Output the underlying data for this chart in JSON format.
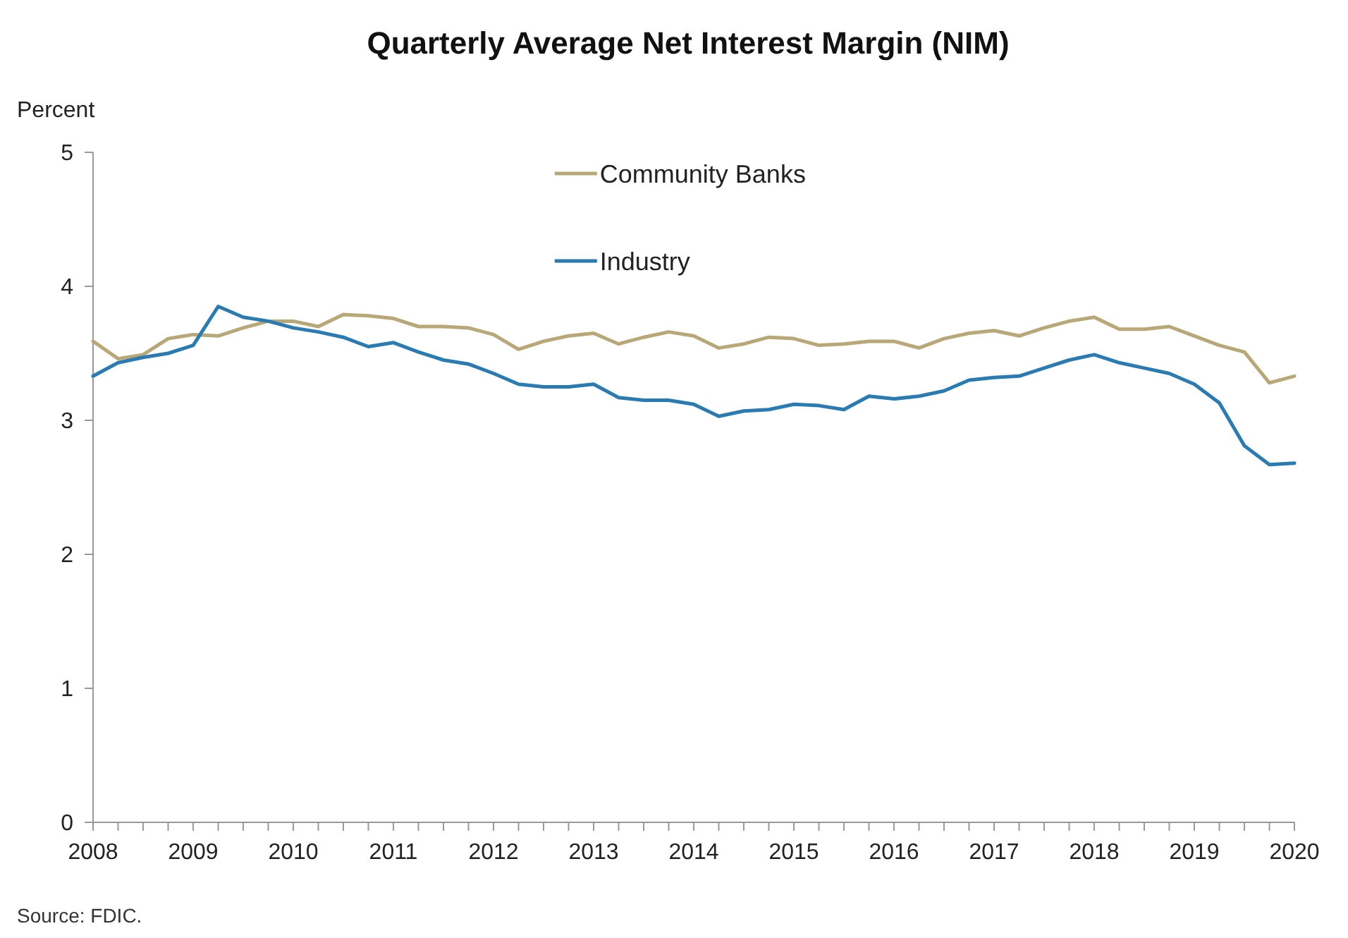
{
  "chart_data": {
    "type": "line",
    "title": "Quarterly Average Net Interest Margin (NIM)",
    "ylabel": "Percent",
    "annotations": [
      "Source: FDIC."
    ],
    "x": [
      2008,
      2008.25,
      2008.5,
      2008.75,
      2009,
      2009.25,
      2009.5,
      2009.75,
      2010,
      2010.25,
      2010.5,
      2010.75,
      2011,
      2011.25,
      2011.5,
      2011.75,
      2012,
      2012.25,
      2012.5,
      2012.75,
      2013,
      2013.25,
      2013.5,
      2013.75,
      2014,
      2014.25,
      2014.5,
      2014.75,
      2015,
      2015.25,
      2015.5,
      2015.75,
      2016,
      2016.25,
      2016.5,
      2016.75,
      2017,
      2017.25,
      2017.5,
      2017.75,
      2018,
      2018.25,
      2018.5,
      2018.75,
      2019,
      2019.25,
      2019.5,
      2019.75,
      2020
    ],
    "series": [
      {
        "name": "Community Banks",
        "color": "#b8a878",
        "values": [
          3.59,
          3.46,
          3.49,
          3.61,
          3.64,
          3.63,
          3.69,
          3.74,
          3.74,
          3.7,
          3.79,
          3.78,
          3.76,
          3.7,
          3.7,
          3.69,
          3.64,
          3.53,
          3.59,
          3.63,
          3.65,
          3.57,
          3.62,
          3.66,
          3.63,
          3.54,
          3.57,
          3.62,
          3.61,
          3.56,
          3.57,
          3.59,
          3.59,
          3.54,
          3.61,
          3.65,
          3.67,
          3.63,
          3.69,
          3.74,
          3.77,
          3.68,
          3.68,
          3.7,
          3.63,
          3.56,
          3.51,
          3.28,
          3.33
        ]
      },
      {
        "name": "Industry",
        "color": "#2b7bb3",
        "values": [
          3.33,
          3.43,
          3.47,
          3.5,
          3.56,
          3.85,
          3.77,
          3.74,
          3.69,
          3.66,
          3.62,
          3.55,
          3.58,
          3.51,
          3.45,
          3.42,
          3.35,
          3.27,
          3.25,
          3.25,
          3.27,
          3.17,
          3.15,
          3.15,
          3.12,
          3.03,
          3.07,
          3.08,
          3.12,
          3.11,
          3.08,
          3.18,
          3.16,
          3.18,
          3.22,
          3.3,
          3.32,
          3.33,
          3.39,
          3.45,
          3.49,
          3.43,
          3.39,
          3.35,
          3.27,
          3.13,
          2.81,
          2.67,
          2.68
        ]
      }
    ],
    "xlim": [
      2008,
      2020
    ],
    "xticks": [
      2008,
      {
        "value": 2008.25,
        "label": null
      },
      {
        "value": 2008.5,
        "label": null
      },
      {
        "value": 2008.75,
        "label": null
      },
      2009,
      {
        "value": 2009.25,
        "label": null
      },
      {
        "value": 2009.5,
        "label": null
      },
      {
        "value": 2009.75,
        "label": null
      },
      2010,
      {
        "value": 2010.25,
        "label": null
      },
      {
        "value": 2010.5,
        "label": null
      },
      {
        "value": 2010.75,
        "label": null
      },
      2011,
      {
        "value": 2011.25,
        "label": null
      },
      {
        "value": 2011.5,
        "label": null
      },
      {
        "value": 2011.75,
        "label": null
      },
      2012,
      {
        "value": 2012.25,
        "label": null
      },
      {
        "value": 2012.5,
        "label": null
      },
      {
        "value": 2012.75,
        "label": null
      },
      2013,
      {
        "value": 2013.25,
        "label": null
      },
      {
        "value": 2013.5,
        "label": null
      },
      {
        "value": 2013.75,
        "label": null
      },
      2014,
      {
        "value": 2014.25,
        "label": null
      },
      {
        "value": 2014.5,
        "label": null
      },
      {
        "value": 2014.75,
        "label": null
      },
      2015,
      {
        "value": 2015.25,
        "label": null
      },
      {
        "value": 2015.5,
        "label": null
      },
      {
        "value": 2015.75,
        "label": null
      },
      2016,
      {
        "value": 2016.25,
        "label": null
      },
      {
        "value": 2016.5,
        "label": null
      },
      {
        "value": 2016.75,
        "label": null
      },
      2017,
      {
        "value": 2017.25,
        "label": null
      },
      {
        "value": 2017.5,
        "label": null
      },
      {
        "value": 2017.75,
        "label": null
      },
      2018,
      {
        "value": 2018.25,
        "label": null
      },
      {
        "value": 2018.5,
        "label": null
      },
      {
        "value": 2018.75,
        "label": null
      },
      2019,
      {
        "value": 2019.25,
        "label": null
      },
      {
        "value": 2019.5,
        "label": null
      },
      {
        "value": 2019.75,
        "label": null
      },
      2020
    ],
    "ylim": [
      0,
      5
    ],
    "yticks": [
      0,
      1,
      2,
      3,
      4,
      5
    ],
    "grid": false,
    "legend": "top",
    "marker": "none",
    "line_style": "solid"
  }
}
